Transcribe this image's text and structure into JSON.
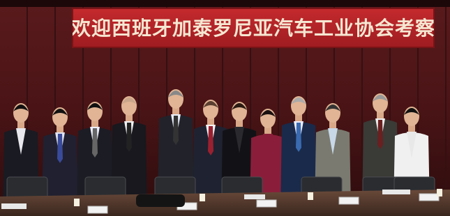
{
  "banner": {
    "text": "欢迎西班牙加泰罗尼亚汽车工业协会考察"
  }
}
